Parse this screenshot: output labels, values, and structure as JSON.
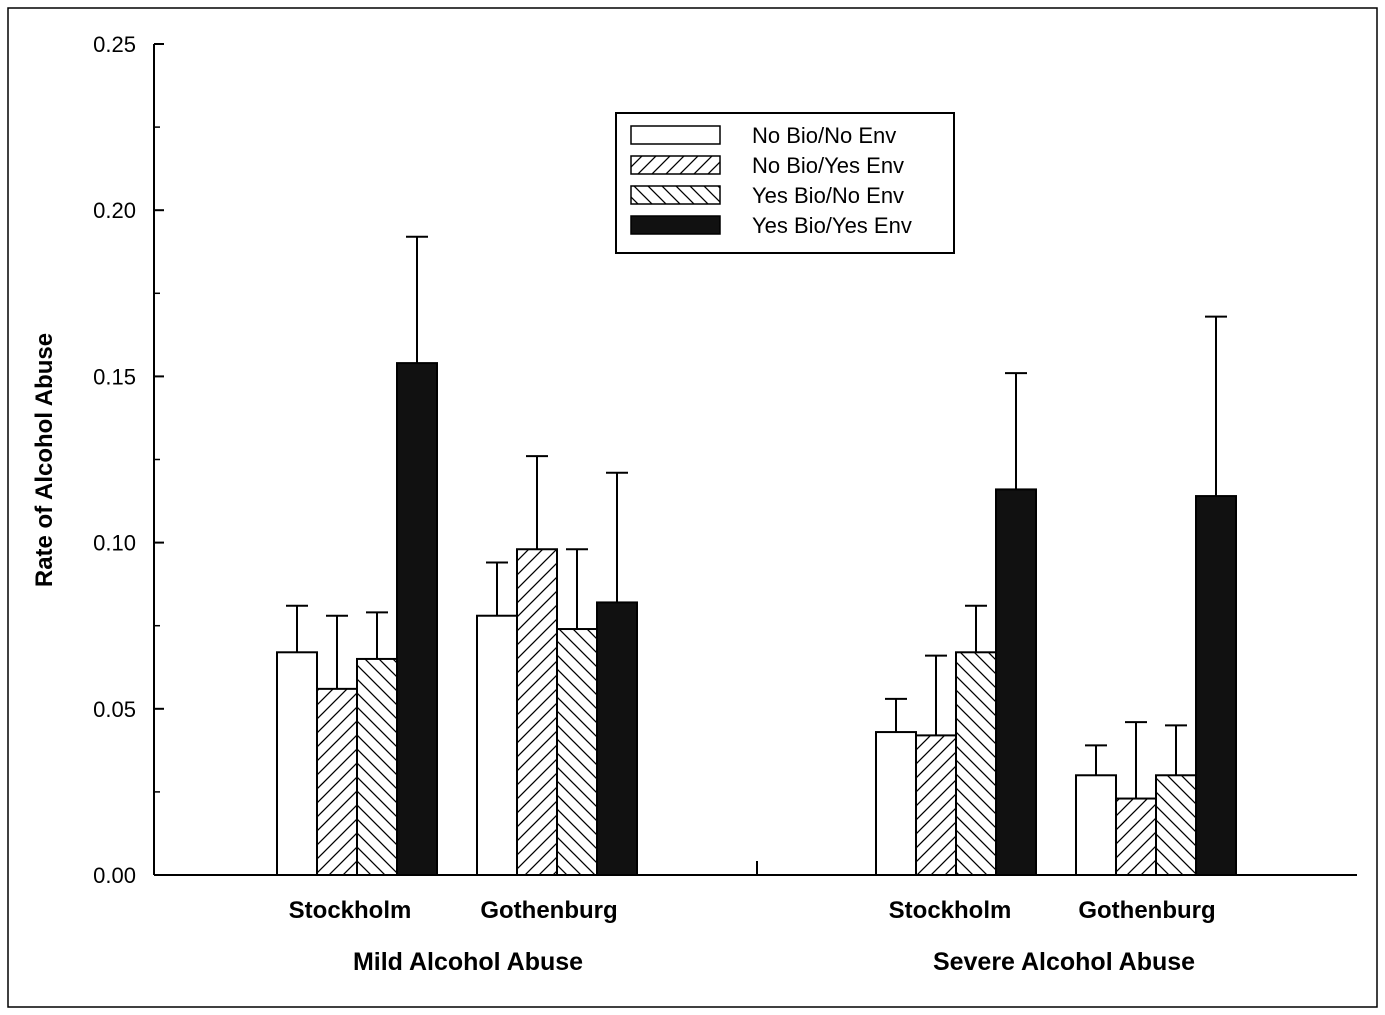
{
  "chart_data": {
    "type": "bar",
    "ylabel": "Rate of Alcohol Abuse",
    "ylim": [
      0,
      0.25
    ],
    "yticks": [
      "0.00",
      "0.05",
      "0.10",
      "0.15",
      "0.20",
      "0.25"
    ],
    "legend_placement": "top-center",
    "groups": [
      {
        "label": "Mild Alcohol Abuse",
        "categories": [
          {
            "label": "Stockholm",
            "values": [
              0.067,
              0.056,
              0.065,
              0.154
            ],
            "errors": [
              0.081,
              0.078,
              0.079,
              0.192
            ]
          },
          {
            "label": "Gothenburg",
            "values": [
              0.078,
              0.098,
              0.074,
              0.082
            ],
            "errors": [
              0.094,
              0.126,
              0.098,
              0.121
            ]
          }
        ]
      },
      {
        "label": "Severe Alcohol Abuse",
        "categories": [
          {
            "label": "Stockholm",
            "values": [
              0.043,
              0.042,
              0.067,
              0.116
            ],
            "errors": [
              0.053,
              0.066,
              0.081,
              0.151
            ]
          },
          {
            "label": "Gothenburg",
            "values": [
              0.03,
              0.023,
              0.03,
              0.114
            ],
            "errors": [
              0.039,
              0.046,
              0.045,
              0.168
            ]
          }
        ]
      }
    ],
    "series": [
      {
        "name": "No Bio/No Env",
        "pattern": "white"
      },
      {
        "name": "No Bio/Yes Env",
        "pattern": "hatch-forward"
      },
      {
        "name": "Yes Bio/No Env",
        "pattern": "hatch-back"
      },
      {
        "name": "Yes Bio/Yes Env",
        "pattern": "black"
      }
    ]
  }
}
